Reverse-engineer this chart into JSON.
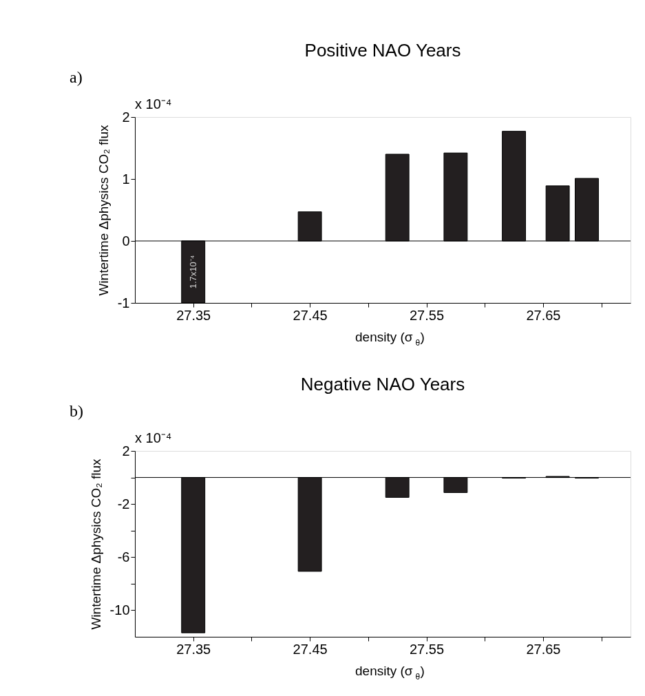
{
  "chart_data": [
    {
      "type": "bar",
      "title": "Positive NAO Years",
      "xlabel": "density (σ$_{θ}$)",
      "ylabel": "Wintertime Δphysics CO₂ flux",
      "x": [
        27.35,
        27.45,
        27.525,
        27.575,
        27.625,
        27.6625,
        27.6875
      ],
      "series": [
        {
          "color": "#231f20",
          "values": [
            -1,
            0.47,
            1.4,
            1.42,
            1.77,
            0.89,
            1.01
          ]
        }
      ],
      "xlim": [
        27.3,
        27.725
      ],
      "ylim": [
        -1,
        2
      ],
      "xticks": [
        27.35,
        {
          "value": 27.4,
          "label": null
        },
        27.45,
        {
          "value": 27.5,
          "label": null
        },
        27.55,
        {
          "value": 27.6,
          "label": null
        },
        27.65,
        {
          "value": 27.7,
          "label": null
        }
      ],
      "yticks": [
        -1,
        0,
        1,
        2
      ],
      "ref_lines": [
        {
          "axis": "y",
          "value": 0,
          "color": "#000000"
        }
      ],
      "annotations": [
        "a)",
        "x 10⁻⁴",
        "1.7x10⁻⁴"
      ],
      "grid": false
    },
    {
      "type": "bar",
      "title": "Negative NAO Years",
      "xlabel": "density (σ$_{θ}$)",
      "ylabel": "Wintertime Δphysics CO₂ flux",
      "x": [
        27.35,
        27.45,
        27.525,
        27.575,
        27.625,
        27.6625,
        27.6875
      ],
      "series": [
        {
          "color": "#231f20",
          "values": [
            -11.7,
            -7.07,
            -1.5,
            -1.14,
            -0.05,
            0.08,
            -0.05
          ]
        }
      ],
      "xlim": [
        27.3,
        27.725
      ],
      "ylim": [
        -12,
        2
      ],
      "xticks": [
        27.35,
        {
          "value": 27.4,
          "label": null
        },
        27.45,
        {
          "value": 27.5,
          "label": null
        },
        27.55,
        {
          "value": 27.6,
          "label": null
        },
        27.65,
        {
          "value": 27.7,
          "label": null
        }
      ],
      "yticks": [
        -10,
        {
          "value": -8,
          "label": null
        },
        -6,
        {
          "value": -4,
          "label": null
        },
        -2,
        {
          "value": 0,
          "label": null
        },
        2
      ],
      "ref_lines": [
        {
          "axis": "y",
          "value": 0,
          "color": "#000000"
        }
      ],
      "annotations": [
        "b)",
        "x 10⁻⁴"
      ],
      "grid": false
    }
  ]
}
